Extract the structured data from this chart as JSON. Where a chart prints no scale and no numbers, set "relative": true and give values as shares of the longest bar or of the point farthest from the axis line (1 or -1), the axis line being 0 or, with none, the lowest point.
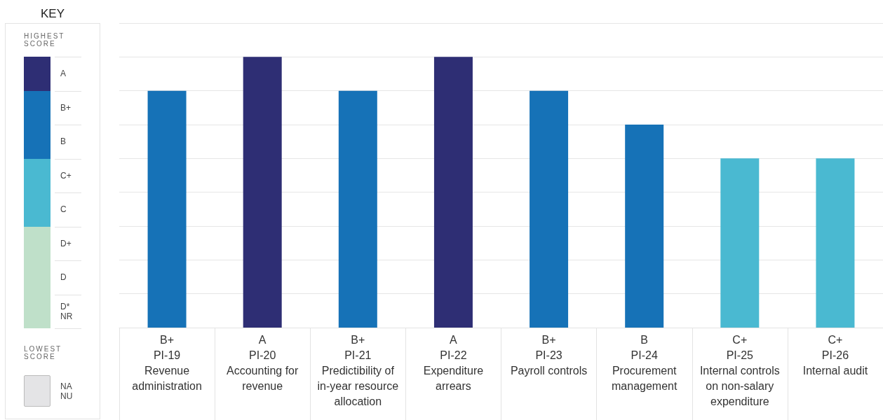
{
  "chart_data": [
    {
      "type": "other",
      "title": "KEY",
      "annotations": [
        "HIGHEST SCORE",
        "LOWEST SCORE"
      ],
      "categories": [
        "A",
        "B+",
        "B",
        "C+",
        "C",
        "D+",
        "D",
        "D*\nNR",
        "NA\nNU"
      ],
      "colors": [
        "#2e2e74",
        "#1672b7",
        "#1672b7",
        "#4ab9d1",
        "#4ab9d1",
        "#bfe0c9",
        "#bfe0c9",
        "#bfe0c9",
        "#e4e4e6"
      ]
    },
    {
      "type": "bar",
      "relative": true,
      "grid": "y",
      "categories": [
        "B+\nPI-19\nRevenue\nadministration",
        "A\nPI-20\nAccounting for\nrevenue",
        "B+\nPI-21\nPredictibility of\nin-year resource\nallocation",
        "A\nPI-22\nExpenditure\narrears",
        "B+\nPI-23\nPayroll controls",
        "B\nPI-24\nProcurement\nmanagement",
        "C+\nPI-25\nInternal controls\non non-salary\nexpenditure",
        "C+\nPI-26\nInternal audit"
      ],
      "values": [
        0.875,
        1,
        0.875,
        1,
        0.875,
        0.75,
        0.625,
        0.625
      ],
      "colors": [
        "#1672b7",
        "#2e2e74",
        "#1672b7",
        "#2e2e74",
        "#1672b7",
        "#1672b7",
        "#4ab9d1",
        "#4ab9d1"
      ]
    }
  ]
}
